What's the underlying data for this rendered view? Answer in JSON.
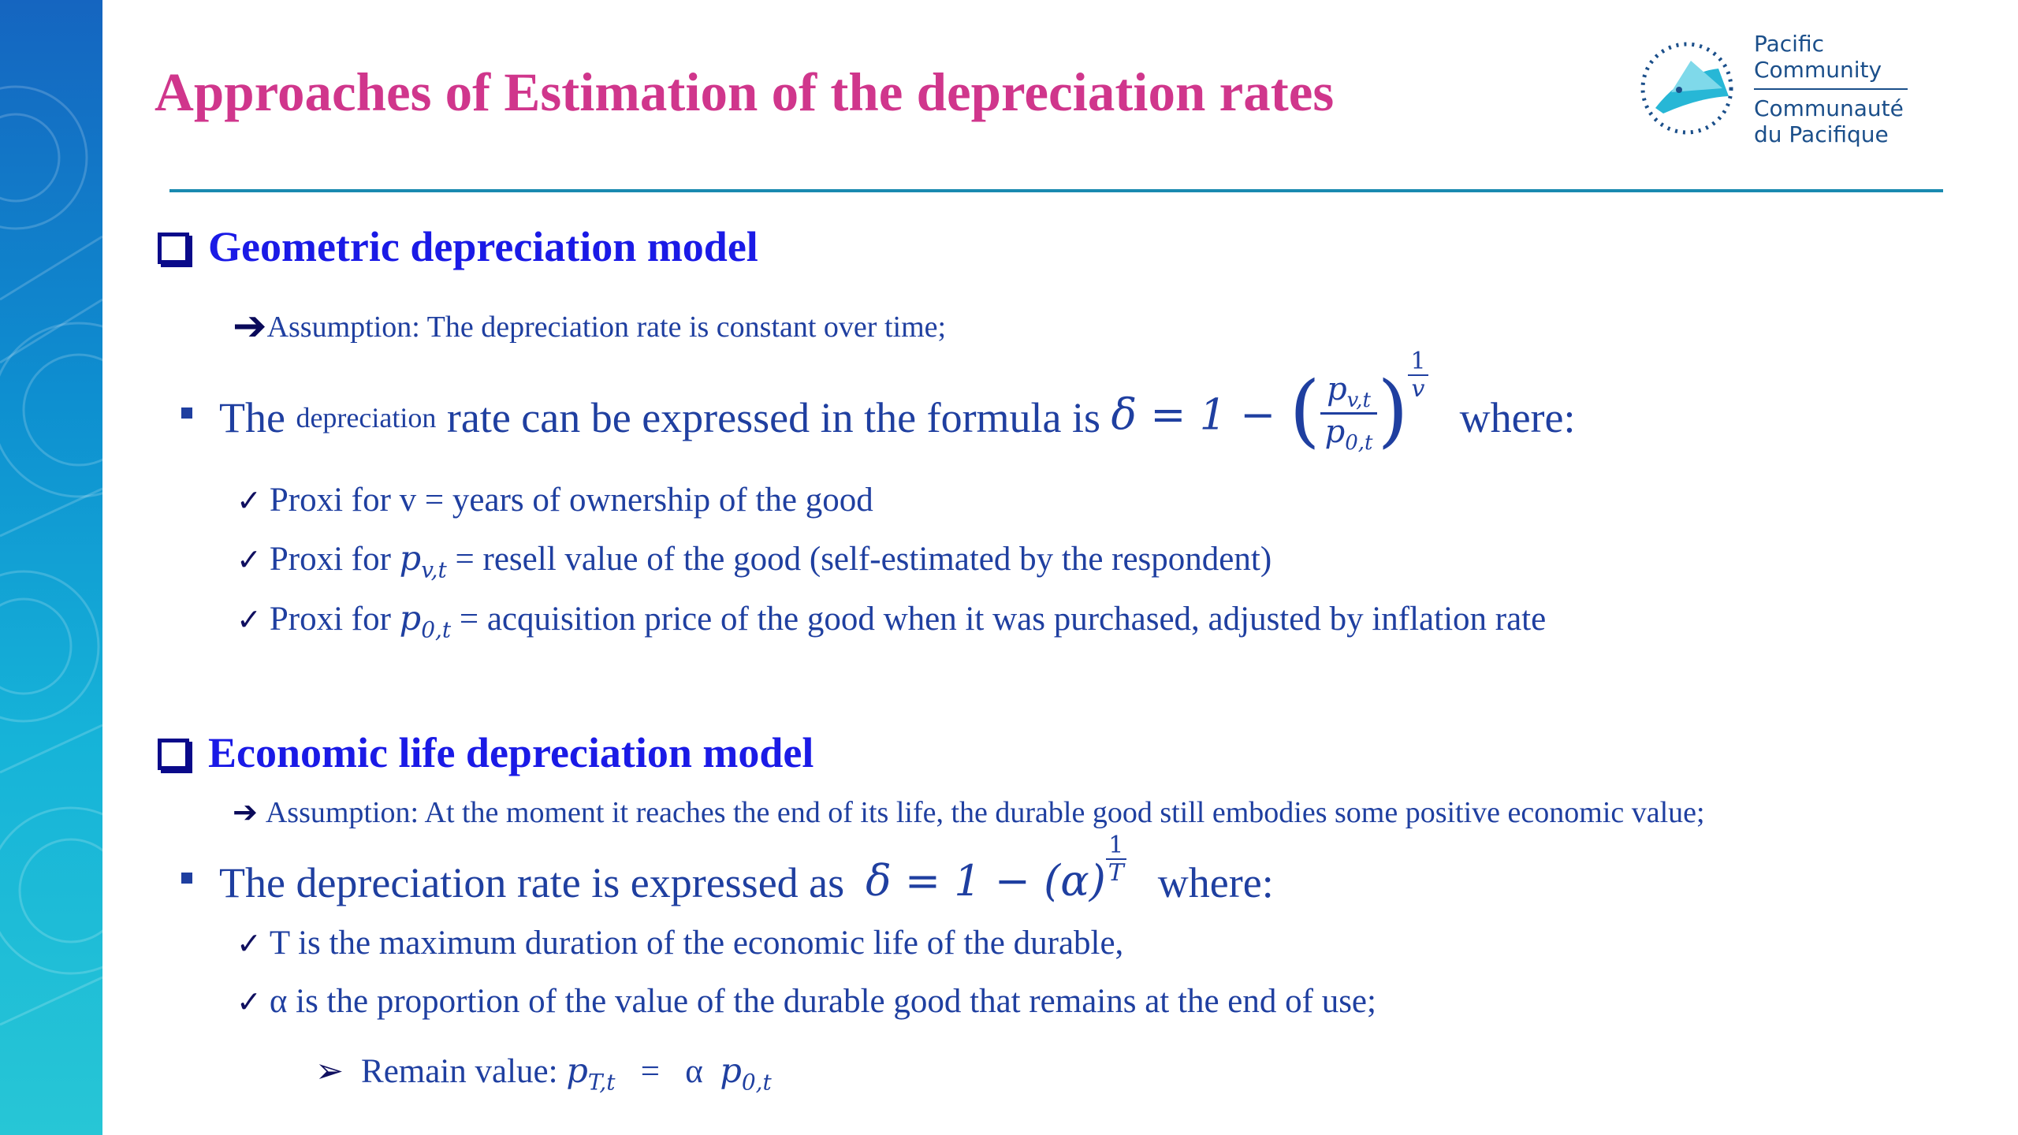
{
  "title": "Approaches of Estimation of the depreciation rates",
  "logo": {
    "line1": "Pacific",
    "line2": "Community",
    "line3": "Communauté",
    "line4": "du Pacifique"
  },
  "section1": {
    "heading": "Geometric depreciation model",
    "assumption": "Assumption: The depreciation rate is constant over time;",
    "formula_intro": {
      "part1": "The",
      "part2": "depreciation",
      "part3": "rate can be expressed in the formula is",
      "where": "where:"
    },
    "formula": {
      "lhs": "δ = 1 −",
      "num": "p",
      "num_sub": "v,t",
      "den": "p",
      "den_sub": "0,t",
      "exp_num": "1",
      "exp_den": "v"
    },
    "checks": [
      {
        "prefix": "Proxi for v = years of ownership of the good",
        "var": "",
        "sub": "",
        "rest": ""
      },
      {
        "prefix": "Proxi for ",
        "var": "p",
        "sub": "v,t",
        "rest": " = resell value of the good (self-estimated by the respondent)"
      },
      {
        "prefix": "Proxi for ",
        "var": "p",
        "sub": "0,t",
        "rest": " = acquisition price of the good when it was purchased, adjusted by inflation rate"
      }
    ]
  },
  "section2": {
    "heading": "Economic life depreciation model",
    "assumption": "Assumption: At the moment it reaches the end of its life, the durable good still embodies some positive economic value;",
    "formula_intro": "The depreciation rate is expressed as",
    "formula": {
      "lhs": "δ = 1 − (α)",
      "exp_num": "1",
      "exp_den": "T"
    },
    "where": "where:",
    "checks": [
      "T is the maximum duration of the economic life of the durable,",
      "α is the proportion of the value of the durable good that remains at the end of use;"
    ],
    "remain": {
      "label": "Remain value:",
      "lhs_var": "p",
      "lhs_sub": "T,t",
      "eq": "=",
      "alpha": "α",
      "rhs_var": "p",
      "rhs_sub": "0,t"
    }
  },
  "colors": {
    "title": "#d0368c",
    "heading": "#1a1ae6",
    "body": "#1f3fa0",
    "rule": "#1a8ab0"
  }
}
